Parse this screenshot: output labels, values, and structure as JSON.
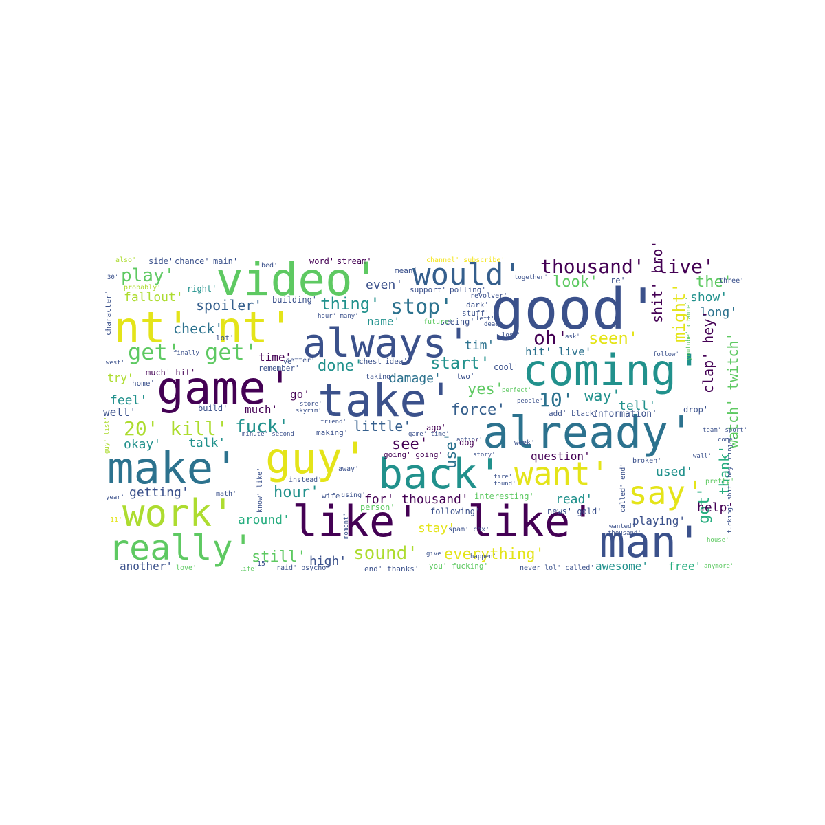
{
  "palette": {
    "deep_purple": "#440154",
    "indigo": "#3b518b",
    "slate_blue": "#355f8d",
    "teal_blue": "#2c728e",
    "teal": "#21918c",
    "sea_green": "#28ae80",
    "green": "#5ec962",
    "lime": "#addc30",
    "yellow": "#e4e419",
    "light_yellow": "#f4e61e"
  },
  "words": {
    "good": "good'",
    "coming": "coming'",
    "already": "already'",
    "like1": "like'",
    "like2": "like'",
    "take": "take'",
    "game": "game'",
    "always": "always'",
    "video": "video'",
    "nt": "nt' nt'",
    "make": "make'",
    "back": "back'",
    "guy": "guy'",
    "man": "man'",
    "want": "want'",
    "say": "say'",
    "work": "work'",
    "really": "really'",
    "would": "would'",
    "thousand_live": "thousand' live'",
    "play": "play'",
    "fallout": "fallout'",
    "thing": "thing'",
    "stop": "stop'",
    "spoiler": "spoiler'",
    "check": "check'",
    "get1": "get'",
    "get2": "get'",
    "oh": "oh'",
    "seen": "seen'",
    "look": "look'",
    "the": "the'",
    "show": "show'",
    "long": "long'",
    "might": "might'",
    "shit_bro": "shit' bro'",
    "clap_hey": "clap' hey'",
    "watch_twitch": "watch' twitch'",
    "thank": "thank'",
    "got": "got'",
    "start": "start'",
    "tim": "tim'",
    "hit_live": "hit' live'",
    "done": "done'",
    "damage": "damage'",
    "ten": "10'",
    "way": "way'",
    "tell": "tell'",
    "yes": "yes'",
    "force": "force'",
    "twenty_kill": "20' kill'",
    "fuck": "fuck'",
    "little": "little'",
    "see": "see'",
    "use": "use'",
    "okay": "okay'",
    "talk": "talk'",
    "feel": "feel'",
    "well": "well'",
    "much": "much'",
    "go": "go'",
    "time": "time'",
    "try": "try'",
    "getting": "getting'",
    "hour": "hour'",
    "around": "around'",
    "for_thousand": "for' thousand'",
    "read": "read'",
    "question": "question'",
    "used": "used'",
    "help": "help'",
    "playing": "playing'",
    "still": "still'",
    "high": "high'",
    "sound": "sound'",
    "everything": "everything'",
    "stay": "stay'",
    "another": "another'",
    "awesome": "awesome'",
    "free": "free'",
    "even": "even'",
    "name": "name'",
    "information": "information'",
    "side": "side'",
    "chance": "chance'",
    "main": "main'",
    "word": "word'",
    "stream": "stream'",
    "right": "right'",
    "building": "building'",
    "lot": "lot'",
    "remember": "remember'",
    "mean": "mean'",
    "seeing": "seeing'",
    "future": "future'",
    "stuff": "stuff'",
    "dark": "dark'",
    "revolver": "revolver'",
    "support": "support'",
    "polling": "polling'",
    "character": "character'",
    "probably": "probably'",
    "also": "also'",
    "bed": "bed'",
    "channel_subscribe": "channel' subscribe'",
    "together": "together'",
    "re": "re'",
    "three": "three'",
    "youtube_channel": "youtube' channel'",
    "follow": "follow'",
    "better": "better'",
    "chest": "chest'",
    "idea": "idea'",
    "cool": "cool'",
    "two": "two'",
    "taking": "taking'",
    "much_hit": "much' hit'",
    "home": "home'",
    "finally": "finally'",
    "store": "store'",
    "skyrim": "skyrim'",
    "going_going": "going' going'",
    "game_time": "game' time'",
    "dog": "dog'",
    "ago": "ago'",
    "making": "making'",
    "friend": "friend'",
    "minute_second": "minute' second'",
    "build": "build'",
    "drop": "drop'",
    "add_black": "add' black'",
    "week": "week'",
    "action": "action'",
    "perfect": "perfect'",
    "people": "people'",
    "story": "story'",
    "broken": "broken'",
    "called_end": "called' end'",
    "wall": "wall'",
    "pretty": "pretty'",
    "come": "come'",
    "team_sport": "team' sport'",
    "instead": "instead'",
    "away": "away'",
    "know_like": "know' like'",
    "wife": "wife'",
    "using": "using'",
    "math": "math'",
    "interesting": "interesting'",
    "found": "found'",
    "person": "person'",
    "following": "following'",
    "news_gold": "news' gold'",
    "thousand2": "thousand'",
    "wanted": "wanted'",
    "spam_cox": "spam' cox'",
    "moment": "moment'",
    "you_fucking": "you' fucking'",
    "never_lol_called": "never lol' called'",
    "end_thanks": "end' thanks'",
    "raid_psycho": "raid' psycho'",
    "fifteen": "15'",
    "life": "life'",
    "love": "love'",
    "year": "year'",
    "eleven": "11'",
    "fucking_shit_hey_ninja": "fucking' shit' hey' ninja'",
    "anymore": "anymore'",
    "house": "house'",
    "give": "give'",
    "happen": "happen'",
    "fire": "fire'",
    "ve": "ve'",
    "west": "west'",
    "thirty": "30'",
    "ask": "ask'",
    "lost": "lost'",
    "guy_list": "guy' list'",
    "dead": "dead'",
    "left": "left'",
    "hour_many": "hour' many'"
  }
}
